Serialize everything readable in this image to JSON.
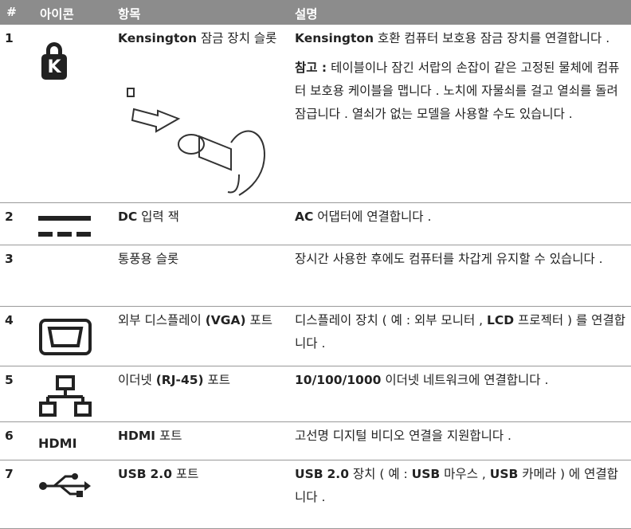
{
  "header": {
    "number": "#",
    "icon": "아이콘",
    "item": "항목",
    "description": "설명"
  },
  "rows": [
    {
      "number": "1",
      "icon_label": "K",
      "item": "Kensington 잠금 장치 슬롯",
      "description": "Kensington 호환 컴퓨터 보호용 잠금 장치를 연결합니다 .",
      "note_label": "참고 :",
      "note": "테이블이나 잠긴 서랍의 손잡이 같은 고정된 물체에 컴퓨터 보호용 케이블을 맵니다 . 노치에 자물쇠를 걸고 열쇠를 돌려 잠급니다 . 열쇠가 없는 모델을 사용할 수도 있습니다 ."
    },
    {
      "number": "2",
      "item": "DC 입력 잭",
      "description": "AC 어댑터에 연결합니다 ."
    },
    {
      "number": "3",
      "item": "통풍용 슬롯",
      "description": "장시간 사용한 후에도 컴퓨터를 차갑게 유지할 수 있습니다 ."
    },
    {
      "number": "4",
      "item": "외부 디스플레이 (VGA) 포트",
      "description": "디스플레이 장치 ( 예 : 외부 모니터 , LCD 프로젝터 ) 를 연결합니다 ."
    },
    {
      "number": "5",
      "item": "이더넷 (RJ-45) 포트",
      "description": "10/100/1000 이더넷 네트워크에 연결합니다 ."
    },
    {
      "number": "6",
      "icon_label": "HDMI",
      "item": "HDMI 포트",
      "description": "고선명 디지털 비디오 연결을 지원합니다 ."
    },
    {
      "number": "7",
      "item": "USB 2.0 포트",
      "description": "USB 2.0 장치 ( 예 : USB 마우스 , USB 카메라 ) 에 연결합니다 ."
    }
  ]
}
